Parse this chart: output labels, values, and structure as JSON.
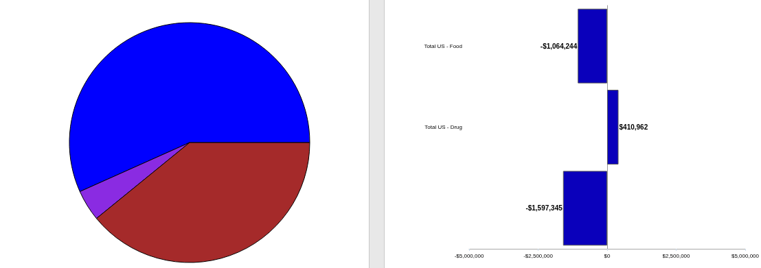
{
  "chart_data": [
    {
      "type": "pie",
      "categories": [
        null,
        null,
        null
      ],
      "values": [
        56.7,
        4.2,
        39.1
      ],
      "colors": [
        "#0000ff",
        "#8a2be2",
        "#a52a2a"
      ]
    },
    {
      "type": "bar",
      "orientation": "horizontal",
      "categories": [
        "Total US - Food",
        "Total US - Drug",
        null
      ],
      "values": [
        -1064244,
        410962,
        -1597345
      ],
      "color": "#0a00bb",
      "value_labels": [
        "-$1,064,244",
        "$410,962",
        "-$1,597,345"
      ],
      "xlim": [
        -5000000,
        5000000
      ],
      "xticks": [
        {
          "value": -5000000,
          "label": "-$5,000,000"
        },
        {
          "value": -2500000,
          "label": "-$2,500,000"
        },
        {
          "value": 0,
          "label": "$0"
        },
        {
          "value": 2500000,
          "label": "$2,500,000"
        },
        {
          "value": 5000000,
          "label": "$5,000,000"
        }
      ]
    }
  ]
}
